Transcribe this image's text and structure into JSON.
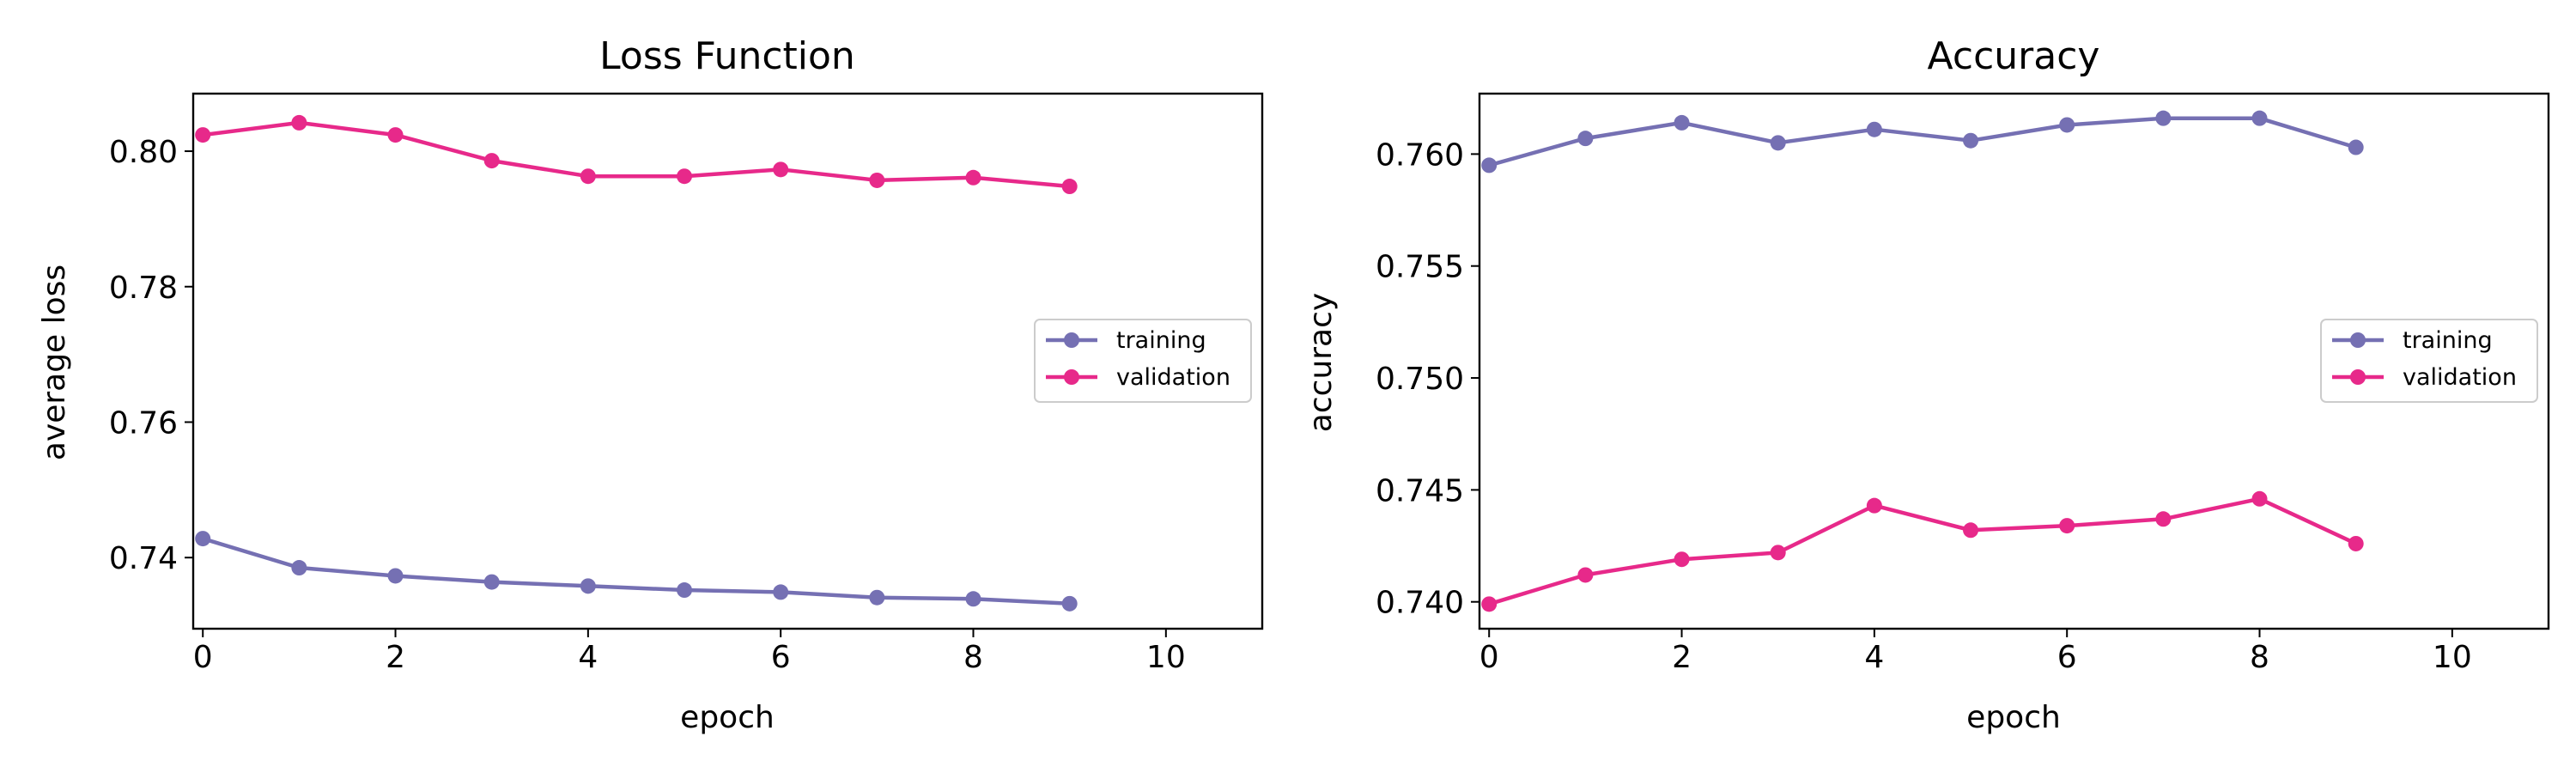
{
  "chart_data": [
    {
      "type": "line",
      "title": "Loss Function",
      "xlabel": "epoch",
      "ylabel": "average loss",
      "xlim": [
        -0.1,
        11
      ],
      "ylim": [
        0.7295,
        0.8085
      ],
      "xticks": [
        0,
        2,
        4,
        6,
        8,
        10
      ],
      "yticks": [
        0.74,
        0.76,
        0.78,
        0.8
      ],
      "ytick_labels": [
        "0.74",
        "0.76",
        "0.78",
        "0.80"
      ],
      "legend_position": "center-right",
      "grid": false,
      "x": [
        0,
        1,
        2,
        3,
        4,
        5,
        6,
        7,
        8,
        9
      ],
      "series": [
        {
          "name": "training",
          "color": "#7570b3",
          "values": [
            0.7428,
            0.7385,
            0.7373,
            0.7364,
            0.7358,
            0.7352,
            0.7349,
            0.7341,
            0.7339,
            0.7332
          ]
        },
        {
          "name": "validation",
          "color": "#e7298a",
          "values": [
            0.8024,
            0.8042,
            0.8024,
            0.7986,
            0.7963,
            0.7963,
            0.7973,
            0.7957,
            0.7961,
            0.7948
          ]
        }
      ]
    },
    {
      "type": "line",
      "title": "Accuracy",
      "xlabel": "epoch",
      "ylabel": "accuracy",
      "xlim": [
        -0.1,
        11
      ],
      "ylim": [
        0.7388,
        0.7627
      ],
      "xticks": [
        0,
        2,
        4,
        6,
        8,
        10
      ],
      "yticks": [
        0.74,
        0.745,
        0.75,
        0.755,
        0.76
      ],
      "ytick_labels": [
        "0.740",
        "0.745",
        "0.750",
        "0.755",
        "0.760"
      ],
      "legend_position": "center-right",
      "grid": false,
      "x": [
        0,
        1,
        2,
        3,
        4,
        5,
        6,
        7,
        8,
        9
      ],
      "series": [
        {
          "name": "training",
          "color": "#7570b3",
          "values": [
            0.7595,
            0.7607,
            0.7614,
            0.7605,
            0.7611,
            0.7606,
            0.7613,
            0.7616,
            0.7616,
            0.7603
          ]
        },
        {
          "name": "validation",
          "color": "#e7298a",
          "values": [
            0.7399,
            0.7412,
            0.7419,
            0.7422,
            0.7443,
            0.7432,
            0.7434,
            0.7437,
            0.7446,
            0.7426
          ]
        }
      ]
    }
  ]
}
